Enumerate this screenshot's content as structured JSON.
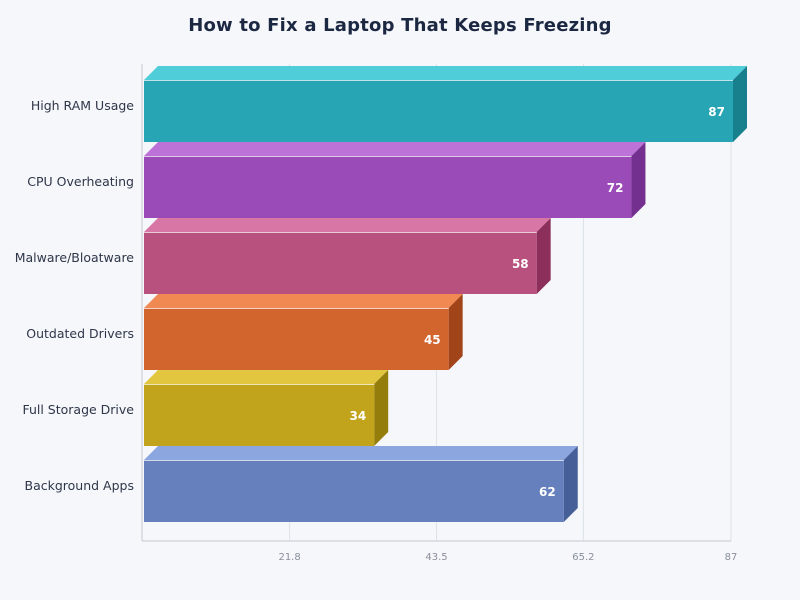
{
  "chart_data": {
    "type": "bar",
    "orientation": "horizontal",
    "style": "3d",
    "title": "How to Fix a Laptop That Keeps Freezing",
    "xlabel": "",
    "ylabel": "",
    "categories": [
      "High RAM Usage",
      "CPU Overheating",
      "Malware/Bloatware",
      "Outdated Drivers",
      "Full Storage Drive",
      "Background Apps"
    ],
    "values": [
      87,
      72,
      58,
      45,
      34,
      62
    ],
    "colors": [
      {
        "front": "#27a5b5",
        "top": "#4fcdd9",
        "side": "#17808c"
      },
      {
        "front": "#9a4bb8",
        "top": "#bc72d6",
        "side": "#73308e"
      },
      {
        "front": "#b8517e",
        "top": "#d877a6",
        "side": "#8c2f5b"
      },
      {
        "front": "#d2652e",
        "top": "#f08a52",
        "side": "#a24419"
      },
      {
        "front": "#c2a41c",
        "top": "#e3c640",
        "side": "#957d0b"
      },
      {
        "front": "#6580bd",
        "top": "#8ca6e0",
        "side": "#475f99"
      }
    ],
    "xlim": [
      0,
      87
    ],
    "xticks": [
      21.8,
      43.5,
      65.2,
      87
    ],
    "xtick_labels": [
      "21.8",
      "43.5",
      "65.2",
      "87"
    ],
    "grid": true,
    "legend": false,
    "data_labels": true
  }
}
